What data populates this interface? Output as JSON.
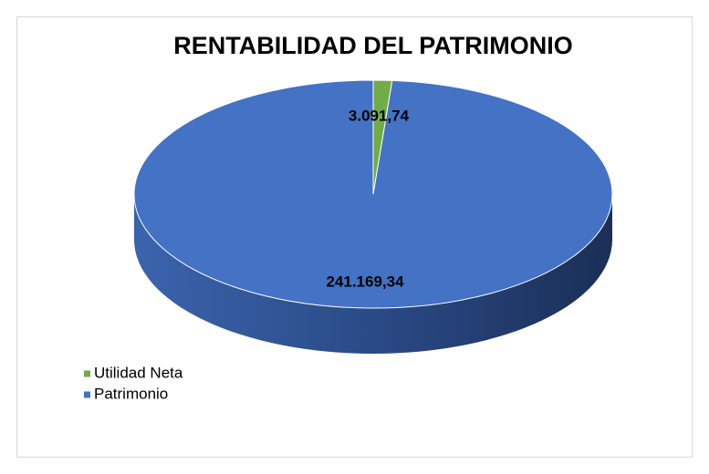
{
  "chart_data": {
    "type": "pie",
    "title": "RENTABILIDAD DEL PATRIMONIO",
    "categories": [
      "Utilidad Neta",
      "Patrimonio"
    ],
    "values": [
      3091.74,
      241169.34
    ],
    "value_labels": [
      "3.091,74",
      "241.169,34"
    ],
    "colors": [
      "#70ad47",
      "#4472c4"
    ],
    "legend": "bottom-left"
  }
}
